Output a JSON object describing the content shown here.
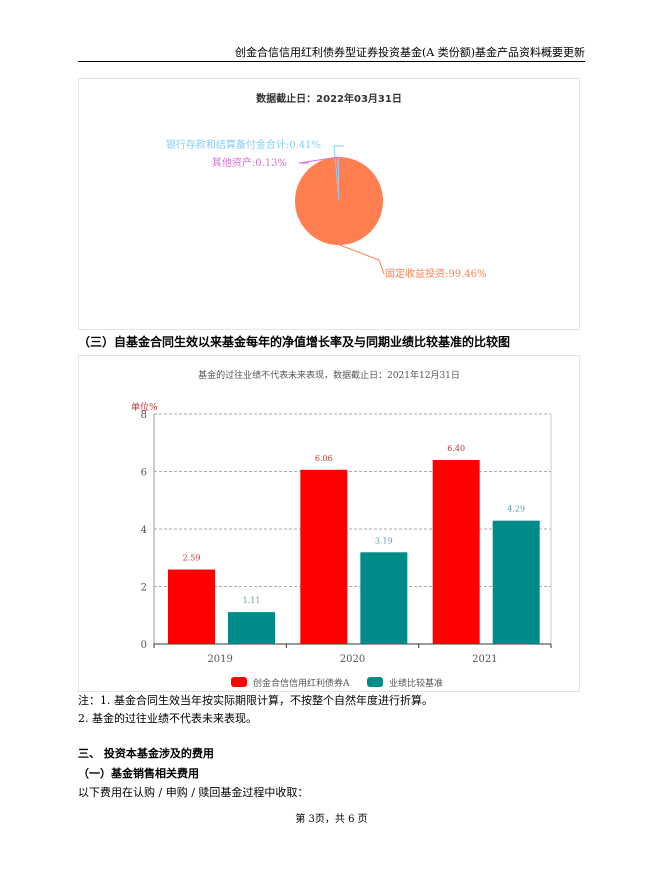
{
  "header": {
    "title": "创金合信信用红利债券型证券投资基金(A 类份额)基金产品资料概要更新"
  },
  "pie_chart": {
    "chart_data": {
      "type": "pie",
      "title": "数据截止日：2022年03月31日",
      "slices": [
        {
          "label": "固定收益投资",
          "value": 99.46,
          "text": "固定收益投资:99.46%",
          "color": "#ff7f50"
        },
        {
          "label": "银行存款和结算备付金合计",
          "value": 0.41,
          "text": "银行存款和结算备付金合计:0.41%",
          "color": "#87cefa"
        },
        {
          "label": "其他资产",
          "value": 0.13,
          "text": "其他资产:0.13%",
          "color": "#da70d6"
        }
      ]
    }
  },
  "section_heading": "（三）自基金合同生效以来基金每年的净值增长率及与同期业绩比较基准的比较图",
  "bar_chart": {
    "chart_data": {
      "type": "bar",
      "title": "基金的过往业绩不代表未来表现，数据截止日：2021年12月31日",
      "ylabel": "单位%",
      "ylim": [
        0,
        8
      ],
      "yticks": [
        "0",
        "2",
        "4",
        "6",
        "8"
      ],
      "grid": true,
      "legend": "bottom",
      "categories": [
        "2019",
        "2020",
        "2021"
      ],
      "series": [
        {
          "name": "创金合信信用红利债券A",
          "values": [
            2.59,
            6.06,
            6.4
          ],
          "labels": [
            "2.59",
            "6.06",
            "6.40"
          ],
          "color": "#ff0000"
        },
        {
          "name": "业绩比较基准",
          "values": [
            1.11,
            3.19,
            4.29
          ],
          "labels": [
            "1.11",
            "3.19",
            "4.29"
          ],
          "color": "#008b8b"
        }
      ]
    }
  },
  "notes": [
    "注：1. 基金合同生效当年按实际期限计算，不按整个自然年度进行折算。",
    "2. 基金的过往业绩不代表未来表现。"
  ],
  "section3": "三、  投资本基金涉及的费用",
  "section3_1": "（一）基金销售相关费用",
  "fee_intro": "以下费用在认购 / 申购 / 赎回基金过程中收取：",
  "footer": "第  3页，共 6 页"
}
